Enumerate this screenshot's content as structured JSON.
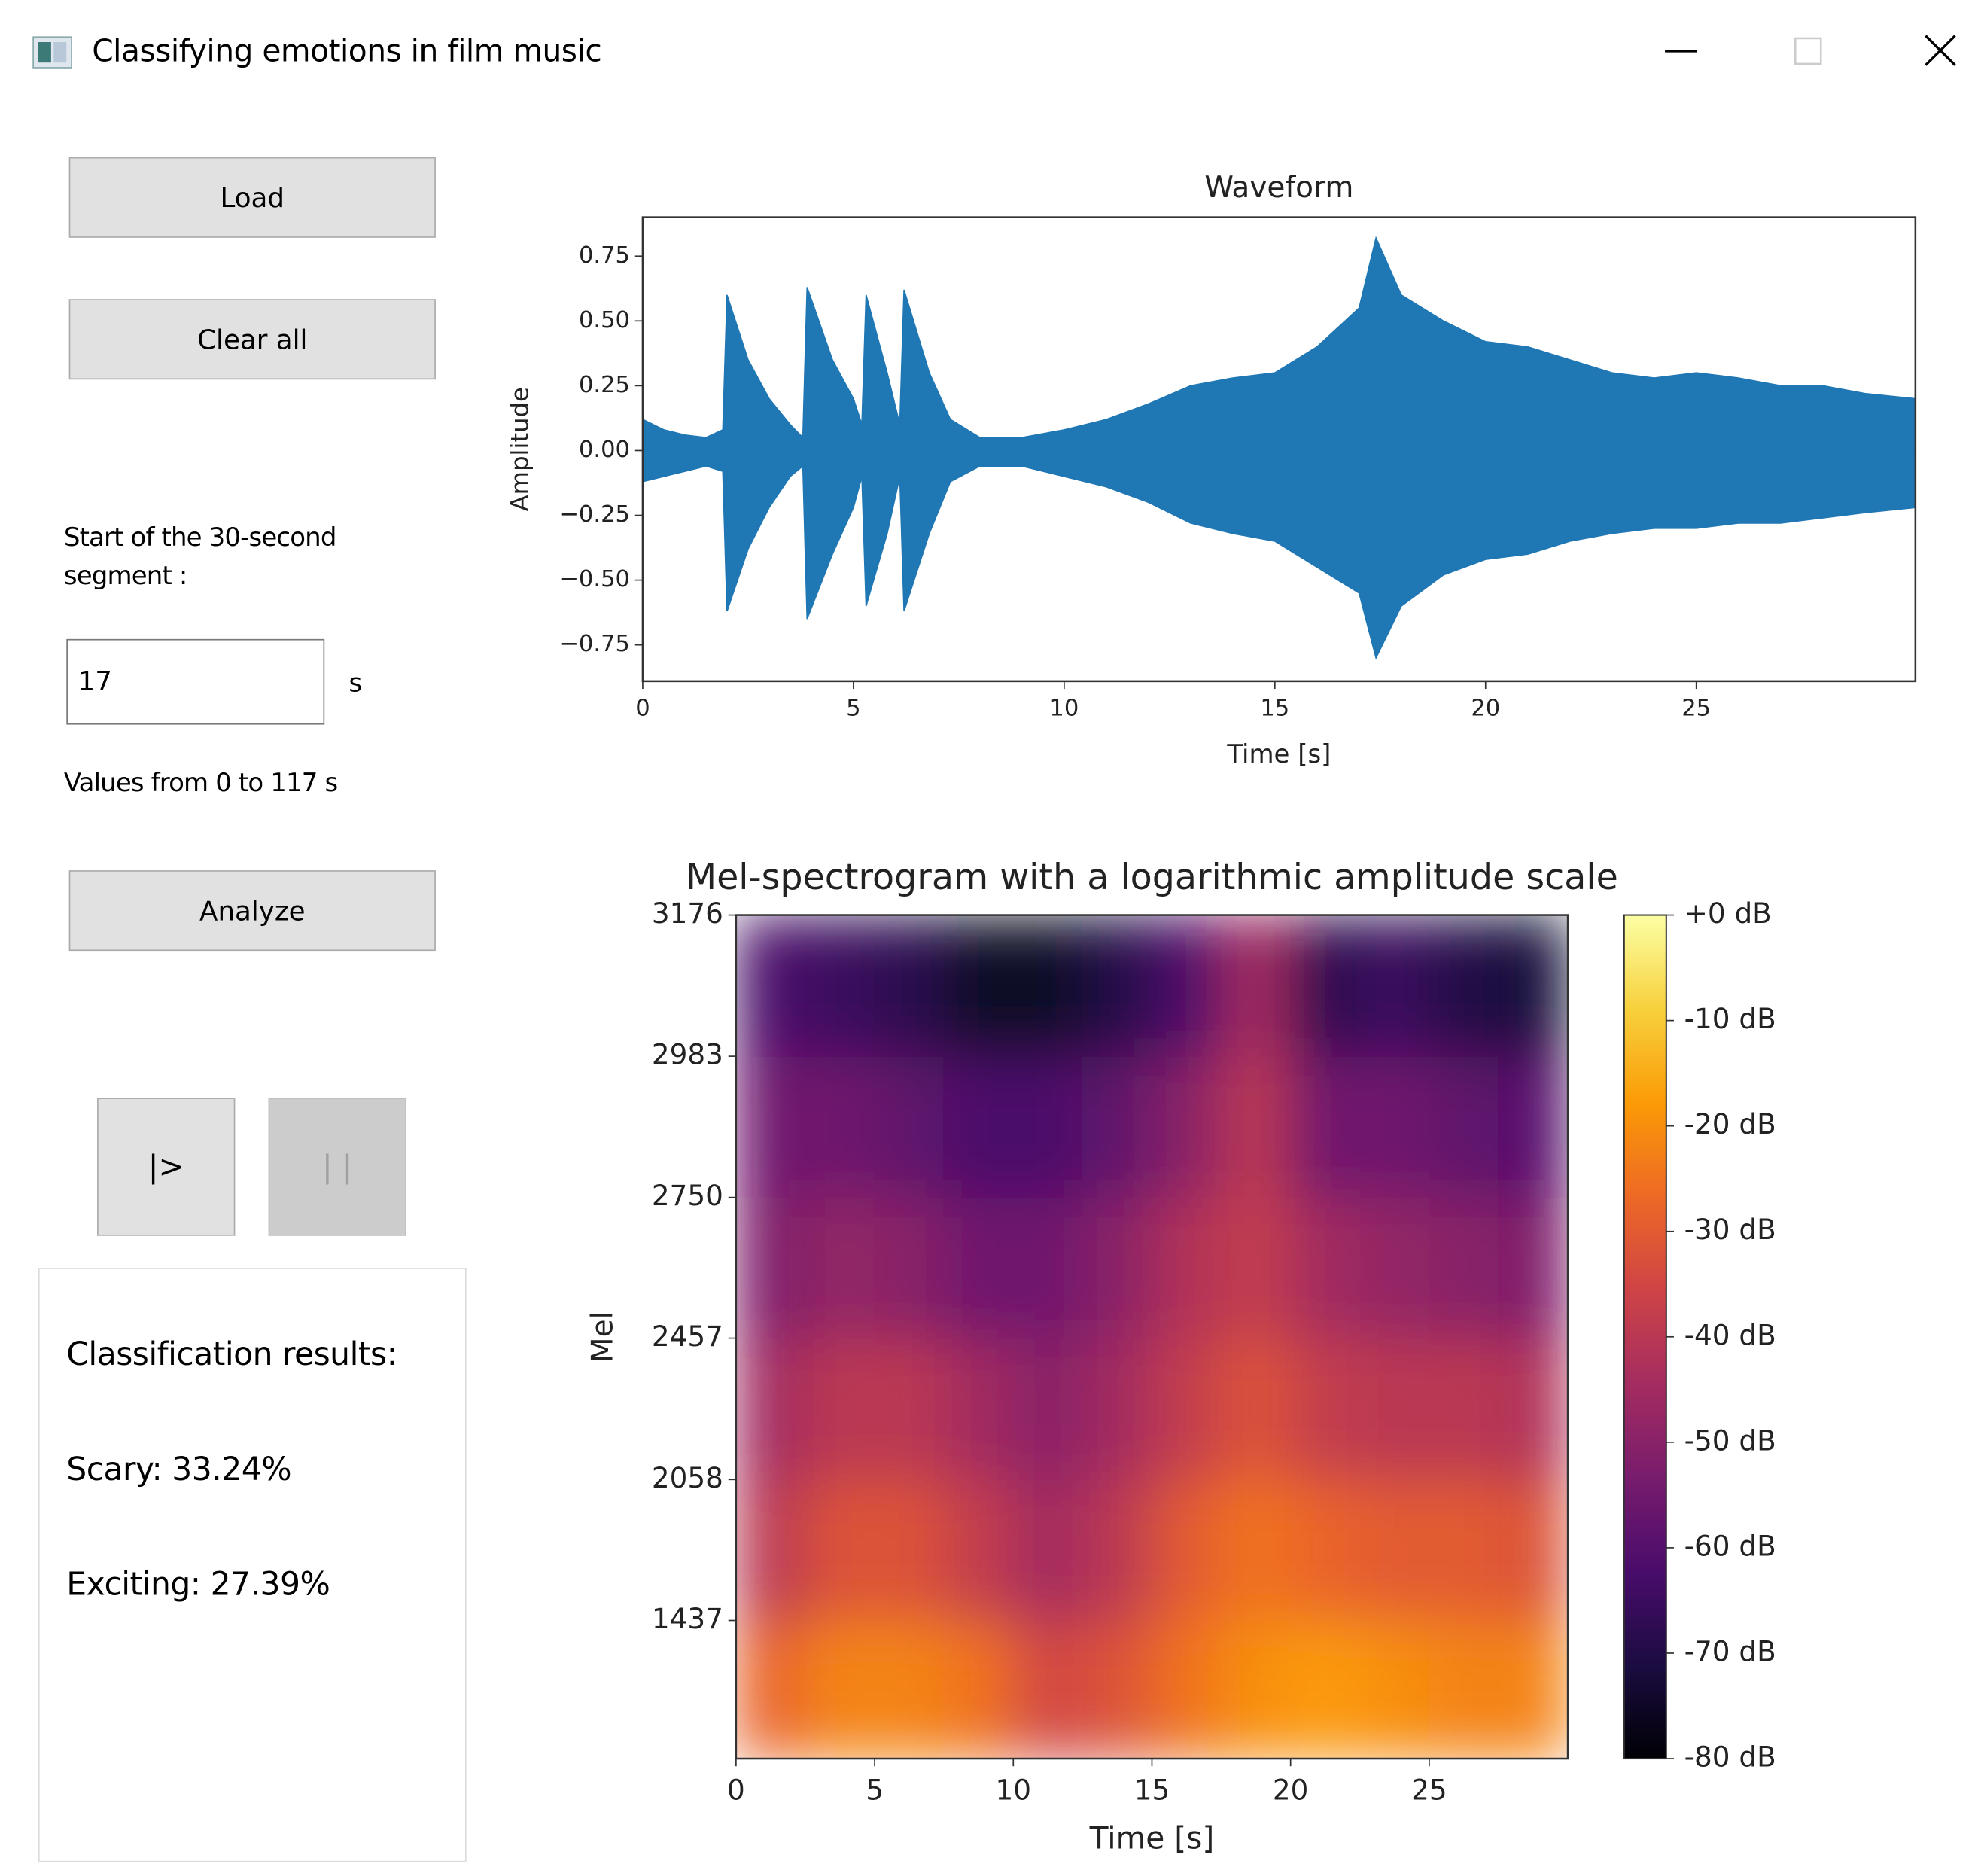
{
  "window": {
    "title": "Classifying emotions in film music"
  },
  "buttons": {
    "load": "Load",
    "clear": "Clear all",
    "analyze": "Analyze",
    "play": "|>",
    "pause": "| |"
  },
  "segment": {
    "label": "Start of the 30-second segment :",
    "value": "17",
    "unit": "s",
    "hint": "Values from 0 to 117 s"
  },
  "results": {
    "title": "Classification results:",
    "items": [
      "Scary: 33.24%",
      "Exciting: 27.39%"
    ]
  },
  "chart_data": [
    {
      "type": "area",
      "title": "Waveform",
      "xlabel": "Time [s]",
      "ylabel": "Amplitude",
      "x": [
        0,
        0.5,
        1,
        1.5,
        1.9,
        2.0,
        2.5,
        3,
        3.5,
        3.8,
        3.9,
        4.5,
        5,
        5.2,
        5.3,
        5.8,
        6.1,
        6.2,
        6.8,
        7.3,
        8,
        9,
        10,
        11,
        12,
        13,
        14,
        15,
        16,
        17,
        17.4,
        18,
        19,
        20,
        21,
        22,
        23,
        24,
        25,
        26,
        27,
        28,
        29,
        30.2
      ],
      "series": [
        {
          "color": "#1f77b4",
          "values": [
            0.12,
            0.08,
            0.06,
            0.05,
            0.08,
            0.6,
            0.35,
            0.2,
            0.1,
            0.05,
            0.63,
            0.35,
            0.2,
            0.1,
            0.6,
            0.3,
            0.1,
            0.62,
            0.3,
            0.12,
            0.05,
            0.05,
            0.08,
            0.12,
            0.18,
            0.25,
            0.28,
            0.3,
            0.4,
            0.55,
            0.82,
            0.6,
            0.5,
            0.42,
            0.4,
            0.35,
            0.3,
            0.28,
            0.3,
            0.28,
            0.25,
            0.25,
            0.22,
            0.2
          ]
        },
        {
          "color": "#1f77b4",
          "values": [
            -0.12,
            -0.1,
            -0.08,
            -0.06,
            -0.08,
            -0.62,
            -0.38,
            -0.22,
            -0.1,
            -0.06,
            -0.65,
            -0.4,
            -0.22,
            -0.1,
            -0.6,
            -0.32,
            -0.1,
            -0.62,
            -0.32,
            -0.12,
            -0.06,
            -0.06,
            -0.1,
            -0.14,
            -0.2,
            -0.28,
            -0.32,
            -0.35,
            -0.45,
            -0.55,
            -0.8,
            -0.6,
            -0.48,
            -0.42,
            -0.4,
            -0.35,
            -0.32,
            -0.3,
            -0.3,
            -0.28,
            -0.28,
            -0.26,
            -0.24,
            -0.22
          ]
        }
      ],
      "xlim": [
        0,
        30.2
      ],
      "ylim": [
        -0.89,
        0.9
      ],
      "xticks": [
        0,
        5,
        10,
        15,
        20,
        25
      ],
      "yticks": [
        {
          "value": 0.75,
          "label": "0.75"
        },
        {
          "value": 0.5,
          "label": "0.50"
        },
        {
          "value": 0.25,
          "label": "0.25"
        },
        {
          "value": 0,
          "label": "0.00"
        },
        {
          "value": -0.25,
          "label": "−0.25"
        },
        {
          "value": -0.5,
          "label": "−0.50"
        },
        {
          "value": -0.75,
          "label": "−0.75"
        }
      ]
    },
    {
      "type": "heatmap",
      "title": "Mel-spectrogram with a logarithmic amplitude scale",
      "xlabel": "Time [s]",
      "ylabel": "Mel",
      "yscale": "mel",
      "xbins": [
        0,
        2.5,
        5,
        7.5,
        10,
        12.5,
        15,
        17.5,
        20,
        22.5,
        25,
        27.5,
        30
      ],
      "ybins": [
        0,
        1437,
        2058,
        2457,
        2750,
        2983,
        3176
      ],
      "values": [
        [
          -28,
          -22,
          -22,
          -25,
          -35,
          -32,
          -25,
          -20,
          -18,
          -20,
          -22,
          -22
        ],
        [
          -40,
          -32,
          -32,
          -38,
          -45,
          -40,
          -30,
          -25,
          -28,
          -30,
          -30,
          -32
        ],
        [
          -45,
          -40,
          -40,
          -45,
          -50,
          -45,
          -38,
          -32,
          -38,
          -40,
          -40,
          -42
        ],
        [
          -52,
          -48,
          -50,
          -55,
          -55,
          -50,
          -42,
          -38,
          -45,
          -48,
          -50,
          -52
        ],
        [
          -55,
          -55,
          -58,
          -62,
          -62,
          -58,
          -50,
          -40,
          -55,
          -55,
          -58,
          -60
        ],
        [
          -62,
          -65,
          -68,
          -75,
          -75,
          -70,
          -62,
          -45,
          -68,
          -65,
          -70,
          -72
        ]
      ],
      "xlim": [
        0,
        30
      ],
      "ylim": [
        0,
        3176
      ],
      "xticks": [
        0,
        5,
        10,
        15,
        20,
        25
      ],
      "yticks": [
        1437,
        2058,
        2457,
        2750,
        2983,
        3176
      ],
      "zlim": [
        -80,
        0
      ],
      "zticks": [
        {
          "value": 0,
          "label": "+0 dB"
        },
        {
          "value": -10,
          "label": "-10 dB"
        },
        {
          "value": -20,
          "label": "-20 dB"
        },
        {
          "value": -30,
          "label": "-30 dB"
        },
        {
          "value": -40,
          "label": "-40 dB"
        },
        {
          "value": -50,
          "label": "-50 dB"
        },
        {
          "value": -60,
          "label": "-60 dB"
        },
        {
          "value": -70,
          "label": "-70 dB"
        },
        {
          "value": -80,
          "label": "-80 dB"
        }
      ],
      "colormap": [
        "#000004",
        "#1b0c41",
        "#4a0c6b",
        "#781c6d",
        "#a52c60",
        "#cf4446",
        "#ed6925",
        "#fb9b06",
        "#f7d13d",
        "#fcffa4"
      ]
    }
  ]
}
